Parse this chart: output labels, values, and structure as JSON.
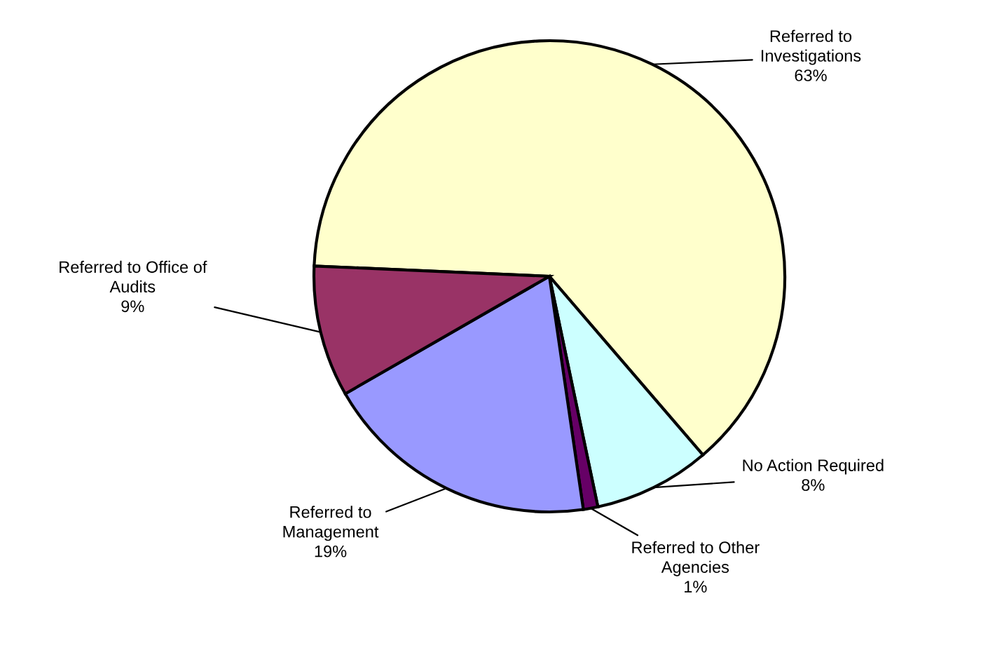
{
  "chart_data": {
    "type": "pie",
    "categories": [
      "Referred to\nInvestigations",
      "No Action Required",
      "Referred to Other\nAgencies",
      "Referred to\nManagement",
      "Referred to Office of\nAudits"
    ],
    "values": [
      63,
      8,
      1,
      19,
      9
    ],
    "colors": [
      "#ffffcc",
      "#ccffff",
      "#660066",
      "#9999ff",
      "#993366"
    ],
    "value_labels": [
      "63%",
      "8%",
      "1%",
      "19%",
      "9%"
    ]
  }
}
